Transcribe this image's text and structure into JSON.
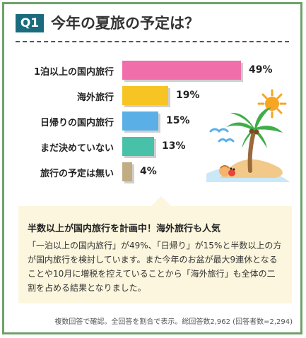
{
  "header": {
    "badge": "Q1",
    "title": "今年の夏旅の予定は？"
  },
  "chart_data": {
    "type": "bar",
    "orientation": "horizontal",
    "categories": [
      "1泊以上の国内旅行",
      "海外旅行",
      "日帰りの国内旅行",
      "まだ決めていない",
      "旅行の予定は無い"
    ],
    "values": [
      49,
      19,
      15,
      13,
      4
    ],
    "value_labels": [
      "49%",
      "19%",
      "15%",
      "13%",
      "4%"
    ],
    "colors": [
      "#f06ea9",
      "#f6c423",
      "#5ab0e6",
      "#47c2a8",
      "#c2ac83"
    ],
    "xlim": [
      0,
      49
    ],
    "grid": false,
    "legend": "none",
    "title": "今年の夏旅の予定は？"
  },
  "comment": {
    "heading": "半数以上が国内旅行を計画中！海外旅行も人気",
    "body": "「一泊以上の国内旅行」が49%、「日帰り」が15%と半数以上の方が国内旅行を検討しています。また今年のお盆が最大9連休となることや10月に増税を控えていることから「海外旅行」も全体の二割を占める結果となりました。"
  },
  "footnote": "複数回答で確認。全回答を割合で表示。総回答数2,962 (回答者数=2,294)",
  "illustration": {
    "icon": "tropical-island-icon"
  }
}
